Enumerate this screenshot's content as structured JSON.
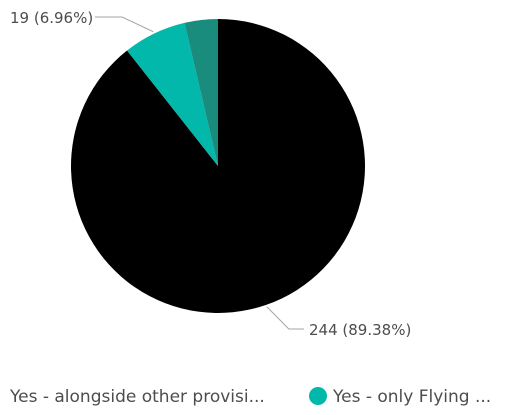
{
  "chart_data": {
    "type": "pie",
    "slices": [
      {
        "label": "Yes - alongside other provisi...",
        "value": 244,
        "percent": 89.38,
        "color": "#000000"
      },
      {
        "label": "Yes - only Flying ...",
        "value": 19,
        "percent": 6.96,
        "color": "#01B8AA"
      },
      {
        "label": "",
        "value": 10,
        "percent": 3.66,
        "color": "#1A8C7E"
      }
    ],
    "data_labels": [
      {
        "text": "244 (89.38%)",
        "slice": 0
      },
      {
        "text": "19 (6.96%)",
        "slice": 1
      }
    ],
    "legend": {
      "placement": "bottom",
      "items": [
        {
          "label": "Yes - alongside other provisi...",
          "color": "#000000"
        },
        {
          "label": "Yes - only Flying ...",
          "color": "#01B8AA"
        }
      ]
    }
  }
}
